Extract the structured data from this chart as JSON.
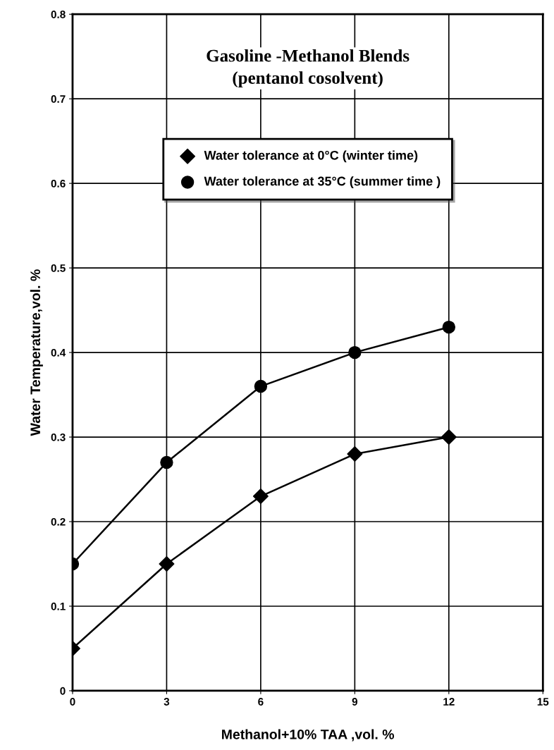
{
  "chart_data": {
    "type": "line",
    "title": "Gasoline -Methanol Blends\n(pentanol cosolvent)",
    "xlabel": "Methanol+10% TAA ,vol. %",
    "ylabel": "Water Temperature,vol. %",
    "x": [
      0,
      3,
      6,
      9,
      12
    ],
    "series": [
      {
        "name": "Water tolerance at 0°C (winter time)",
        "color": "#000000",
        "marker": "diamond",
        "values": [
          0.05,
          0.15,
          0.23,
          0.28,
          0.3
        ]
      },
      {
        "name": "Water tolerance at 35°C (summer time )",
        "color": "#000000",
        "marker": "circle",
        "values": [
          0.15,
          0.27,
          0.36,
          0.4,
          0.43
        ]
      }
    ],
    "xlim": [
      0,
      15
    ],
    "xticks": [
      0,
      3,
      6,
      9,
      12,
      15
    ],
    "ylim": [
      0,
      0.8
    ],
    "yticks": [
      0,
      0.1,
      0.2,
      0.3,
      0.4,
      0.5,
      0.6,
      0.7,
      0.8
    ],
    "grid": true,
    "legend": "top",
    "line_style": "solid"
  }
}
